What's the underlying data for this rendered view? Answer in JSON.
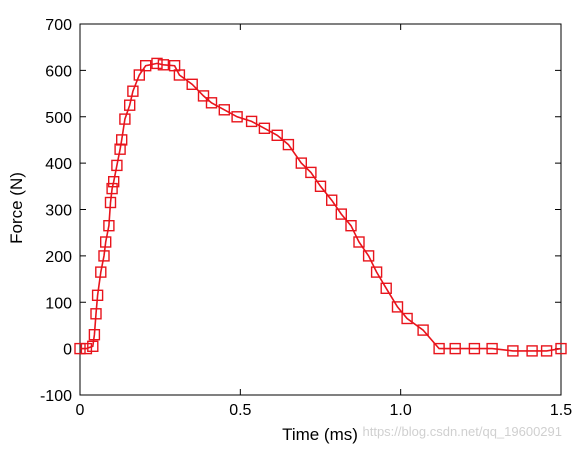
{
  "chart_data": {
    "type": "line",
    "title": "",
    "xlabel": "Time (ms)",
    "ylabel": "Force (N)",
    "xlim": [
      0,
      1.5
    ],
    "ylim": [
      -100,
      700
    ],
    "xticks": [
      0,
      0.5,
      1.0,
      1.5
    ],
    "xtick_labels": [
      "0",
      "0.5",
      "1.0",
      "1.5"
    ],
    "yticks": [
      -100,
      0,
      100,
      200,
      300,
      400,
      500,
      600,
      700
    ],
    "ytick_labels": [
      "-100",
      "0",
      "100",
      "200",
      "300",
      "400",
      "500",
      "600",
      "700"
    ],
    "grid": false,
    "legend": false,
    "color": "#e8141c",
    "marker": "open-square",
    "x": [
      0.0,
      0.02,
      0.04,
      0.045,
      0.05,
      0.055,
      0.065,
      0.075,
      0.08,
      0.09,
      0.095,
      0.1,
      0.105,
      0.115,
      0.125,
      0.13,
      0.14,
      0.155,
      0.165,
      0.185,
      0.205,
      0.24,
      0.26,
      0.295,
      0.31,
      0.35,
      0.385,
      0.41,
      0.45,
      0.49,
      0.535,
      0.575,
      0.615,
      0.65,
      0.69,
      0.72,
      0.75,
      0.785,
      0.815,
      0.845,
      0.87,
      0.9,
      0.925,
      0.955,
      0.99,
      1.02,
      1.07,
      1.12,
      1.17,
      1.23,
      1.285,
      1.35,
      1.41,
      1.455,
      1.5
    ],
    "y": [
      0,
      0,
      5,
      30,
      75,
      115,
      165,
      200,
      230,
      265,
      315,
      345,
      360,
      395,
      430,
      450,
      495,
      525,
      555,
      590,
      610,
      615,
      612,
      610,
      590,
      570,
      545,
      530,
      515,
      500,
      490,
      475,
      460,
      440,
      400,
      380,
      350,
      320,
      290,
      265,
      230,
      200,
      165,
      130,
      90,
      65,
      40,
      0,
      0,
      0,
      0,
      -5,
      -5,
      -5,
      0
    ]
  },
  "watermark": "https://blog.csdn.net/qq_19600291"
}
